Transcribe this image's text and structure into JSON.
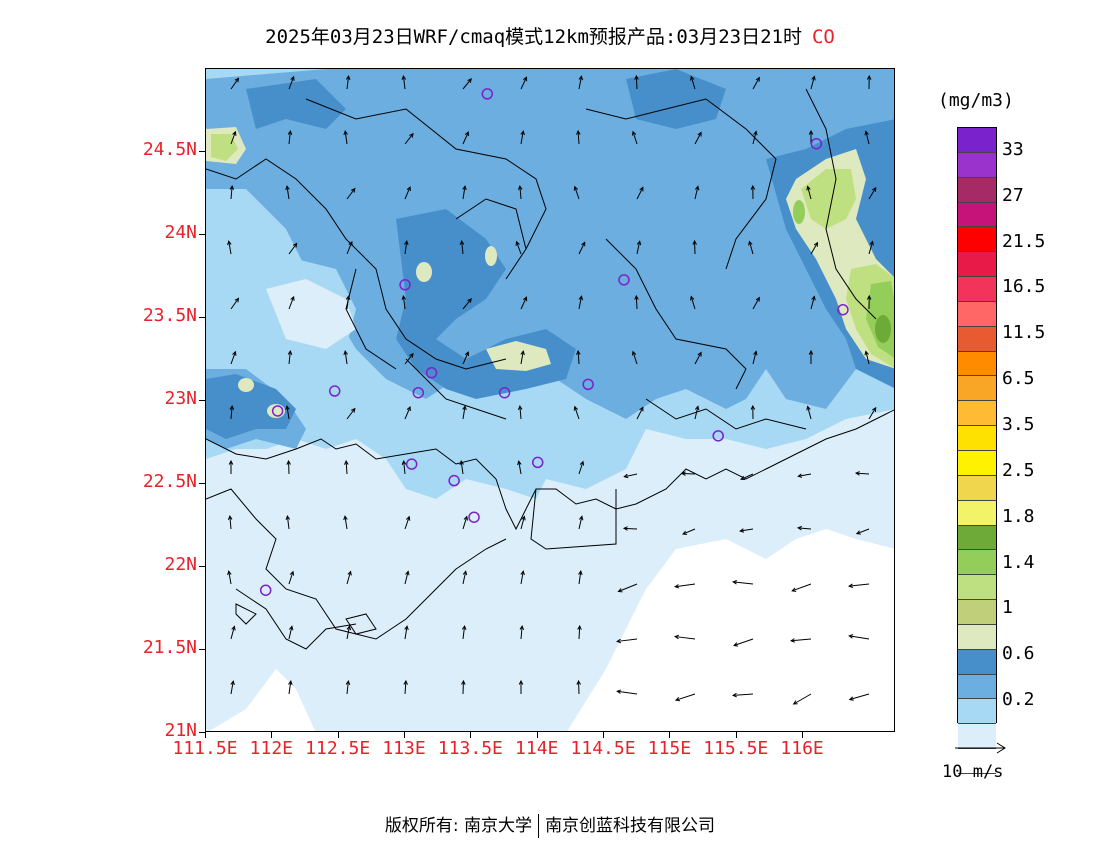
{
  "title": {
    "main": "2025年03月23日WRF/cmaq模式12km预报产品:03月23日21时",
    "species": "CO"
  },
  "map": {
    "lat_labels": [
      "24.5N",
      "24N",
      "23.5N",
      "23N",
      "22.5N",
      "22N",
      "21.5N",
      "21N"
    ],
    "lon_labels": [
      "111.5E",
      "112E",
      "112.5E",
      "113E",
      "113.5E",
      "114E",
      "114.5E",
      "115E",
      "115.5E",
      "116E"
    ],
    "lat_range": [
      21.0,
      25.0
    ],
    "lon_range": [
      111.5,
      116.7
    ],
    "stations": [
      {
        "lon": 113.62,
        "lat": 24.85
      },
      {
        "lon": 116.1,
        "lat": 24.55
      },
      {
        "lon": 113.0,
        "lat": 23.7
      },
      {
        "lon": 114.65,
        "lat": 23.73
      },
      {
        "lon": 116.3,
        "lat": 23.55
      },
      {
        "lon": 113.2,
        "lat": 23.17
      },
      {
        "lon": 112.47,
        "lat": 23.06
      },
      {
        "lon": 113.1,
        "lat": 23.05
      },
      {
        "lon": 113.75,
        "lat": 23.05
      },
      {
        "lon": 114.38,
        "lat": 23.1
      },
      {
        "lon": 112.04,
        "lat": 22.94
      },
      {
        "lon": 115.36,
        "lat": 22.79
      },
      {
        "lon": 113.05,
        "lat": 22.62
      },
      {
        "lon": 113.37,
        "lat": 22.52
      },
      {
        "lon": 114.0,
        "lat": 22.63
      },
      {
        "lon": 113.52,
        "lat": 22.3
      },
      {
        "lon": 111.95,
        "lat": 21.86
      }
    ],
    "colors": {
      "c_0_2": "#dbeefa",
      "c_0_6": "#a7d9f5",
      "c_0_6b": "#6caee0",
      "c_1": "#478fcb",
      "c_1b": "#dee9c0",
      "c_1_4": "#bfe080",
      "c_1_8": "#93ce5a",
      "c_2": "#6eaa38",
      "land_line": "#000000",
      "station": "#7a22cc"
    }
  },
  "colorbar": {
    "unit": "(mg/m3)",
    "labels": [
      "33",
      "27",
      "21.5",
      "16.5",
      "11.5",
      "6.5",
      "3.5",
      "2.5",
      "1.8",
      "1.4",
      "1",
      "0.6",
      "0.2"
    ],
    "colors": [
      "#7a22cc",
      "#9a33cc",
      "#a62a66",
      "#c5137a",
      "#ff0000",
      "#e81a47",
      "#f2335a",
      "#ff6666",
      "#e85a2f",
      "#ff8c00",
      "#f9a626",
      "#ffbb33",
      "#ffe100",
      "#fff200",
      "#f0d64d",
      "#f3f36a",
      "#6eaa38",
      "#93ce5a",
      "#bfe080",
      "#bfcf7a",
      "#dee9c0",
      "#478fcb",
      "#6caee0",
      "#a7d9f5",
      "#dbeefa",
      "#ffffff"
    ]
  },
  "wind_ref": {
    "label": "10 m/s"
  },
  "copyright": {
    "left": "版权所有: 南京大学",
    "right": "南京创蓝科技有限公司"
  }
}
